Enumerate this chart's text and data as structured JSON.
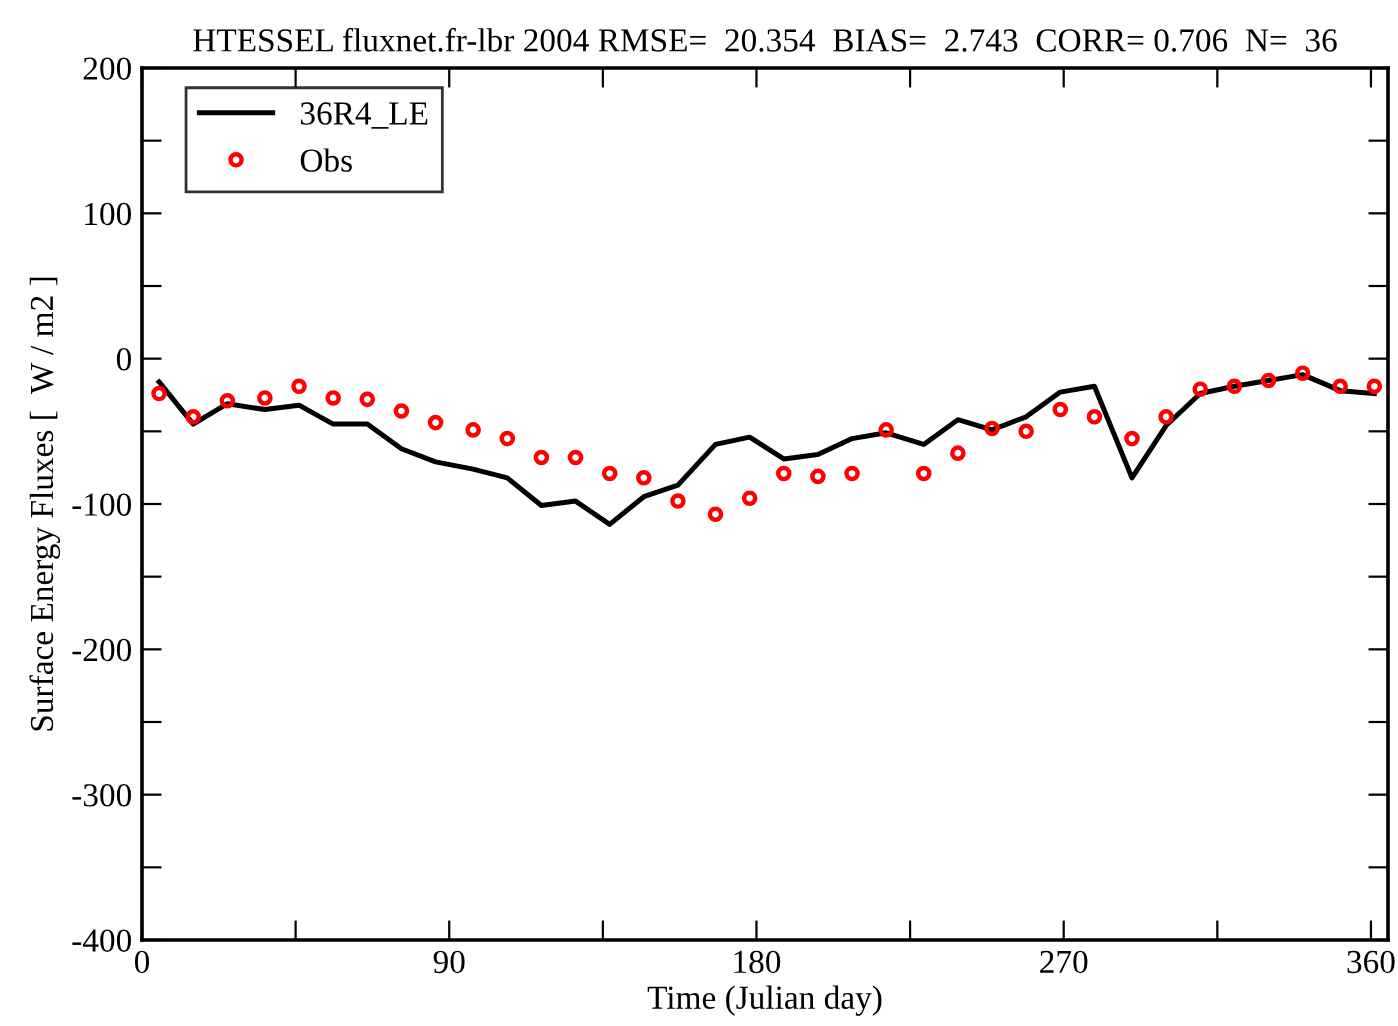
{
  "chart_data": {
    "type": "line",
    "title": "HTESSEL fluxnet.fr-lbr 2004 RMSE=  20.354  BIAS=  2.743  CORR= 0.706  N=  36",
    "xlabel": "Time (Julian day)",
    "ylabel": "Surface Energy Fluxes [  W / m2 ]",
    "x": [
      5,
      15,
      25,
      36,
      46,
      56,
      66,
      76,
      86,
      97,
      107,
      117,
      127,
      137,
      147,
      157,
      168,
      178,
      188,
      198,
      208,
      218,
      229,
      239,
      249,
      259,
      269,
      279,
      290,
      300,
      310,
      320,
      330,
      340,
      351,
      361
    ],
    "series": [
      {
        "name": "36R4_LE",
        "color": "#000000",
        "line_style": "solid",
        "marker": "none",
        "values": [
          -16,
          -45,
          -31,
          -35,
          -32,
          -45,
          -45,
          -62,
          -71,
          -76,
          -82,
          -101,
          -98,
          -114,
          -95,
          -87,
          -59,
          -54,
          -69,
          -66,
          -55,
          -51,
          -59,
          -42,
          -49,
          -40,
          -23,
          -19,
          -82,
          -46,
          -24,
          -19,
          -15,
          -11,
          -22,
          -24
        ]
      },
      {
        "name": "Obs",
        "type": "scatter",
        "color": "#ff0000",
        "marker": "circle",
        "values": [
          -24,
          -40,
          -29,
          -27,
          -19,
          -27,
          -28,
          -36,
          -44,
          -49,
          -55,
          -68,
          -68,
          -79,
          -82,
          -98,
          -107,
          -96,
          -79,
          -81,
          -79,
          -49,
          -79,
          -65,
          -48,
          -50,
          -35,
          -40,
          -55,
          -40,
          -21,
          -19,
          -15,
          -10,
          -19,
          -19
        ]
      }
    ],
    "xlim": [
      0,
      365
    ],
    "ylim": [
      -400,
      200
    ],
    "xticks": [
      0,
      {
        "value": 45,
        "label": null
      },
      90,
      {
        "value": 135,
        "label": null
      },
      180,
      {
        "value": 225,
        "label": null
      },
      270,
      {
        "value": 315,
        "label": null
      },
      360
    ],
    "yticks": [
      -400,
      {
        "value": -350,
        "label": null
      },
      -300,
      {
        "value": -250,
        "label": null
      },
      -200,
      {
        "value": -150,
        "label": null
      },
      -100,
      {
        "value": -50,
        "label": null
      },
      0,
      {
        "value": 50,
        "label": null
      },
      100,
      {
        "value": 150,
        "label": null
      },
      200
    ],
    "grid": false,
    "legend": "top left"
  }
}
